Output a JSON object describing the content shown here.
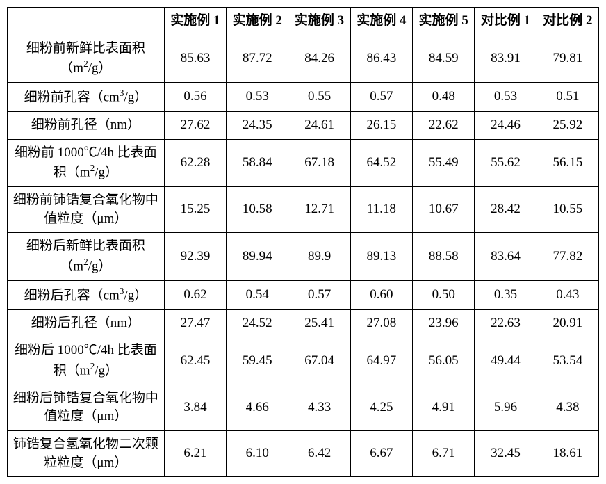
{
  "table": {
    "columns": [
      "实施例 1",
      "实施例 2",
      "实施例 3",
      "实施例 4",
      "实施例 5",
      "对比例 1",
      "对比例 2"
    ],
    "rows": [
      {
        "label_html": "细粉前新鲜比表面积（m<sup>2</sup>/g）",
        "values": [
          "85.63",
          "87.72",
          "84.26",
          "86.43",
          "84.59",
          "83.91",
          "79.81"
        ]
      },
      {
        "label_html": "细粉前孔容（cm<sup>3</sup>/g）",
        "values": [
          "0.56",
          "0.53",
          "0.55",
          "0.57",
          "0.48",
          "0.53",
          "0.51"
        ]
      },
      {
        "label_html": "细粉前孔径（nm）",
        "values": [
          "27.62",
          "24.35",
          "24.61",
          "26.15",
          "22.62",
          "24.46",
          "25.92"
        ]
      },
      {
        "label_html": "细粉前 1000℃/4h 比表面积（m<sup>2</sup>/g）",
        "values": [
          "62.28",
          "58.84",
          "67.18",
          "64.52",
          "55.49",
          "55.62",
          "56.15"
        ]
      },
      {
        "label_html": "细粉前铈锆复合氧化物中值粒度（μm）",
        "values": [
          "15.25",
          "10.58",
          "12.71",
          "11.18",
          "10.67",
          "28.42",
          "10.55"
        ]
      },
      {
        "label_html": "细粉后新鲜比表面积（m<sup>2</sup>/g）",
        "values": [
          "92.39",
          "89.94",
          "89.9",
          "89.13",
          "88.58",
          "83.64",
          "77.82"
        ]
      },
      {
        "label_html": "细粉后孔容（cm<sup>3</sup>/g）",
        "values": [
          "0.62",
          "0.54",
          "0.57",
          "0.60",
          "0.50",
          "0.35",
          "0.43"
        ]
      },
      {
        "label_html": "细粉后孔径（nm）",
        "values": [
          "27.47",
          "24.52",
          "25.41",
          "27.08",
          "23.96",
          "22.63",
          "20.91"
        ]
      },
      {
        "label_html": "细粉后 1000℃/4h 比表面积（m<sup>2</sup>/g）",
        "values": [
          "62.45",
          "59.45",
          "67.04",
          "64.97",
          "56.05",
          "49.44",
          "53.54"
        ]
      },
      {
        "label_html": "细粉后铈锆复合氧化物中值粒度（μm）",
        "values": [
          "3.84",
          "4.66",
          "4.33",
          "4.25",
          "4.91",
          "5.96",
          "4.38"
        ]
      },
      {
        "label_html": "铈锆复合氢氧化物二次颗粒粒度（μm）",
        "values": [
          "6.21",
          "6.10",
          "6.42",
          "6.67",
          "6.71",
          "32.45",
          "18.61"
        ]
      }
    ]
  }
}
